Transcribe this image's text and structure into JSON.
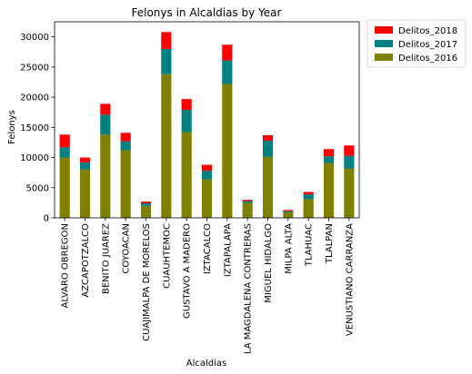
{
  "chart_data": {
    "type": "bar",
    "stacked": true,
    "title": "Felonys in Alcaldias by Year",
    "xlabel": "Alcaldias",
    "ylabel": "Felonys",
    "ylim": [
      0,
      32500
    ],
    "yticks": [
      0,
      5000,
      10000,
      15000,
      20000,
      25000,
      30000
    ],
    "grid": false,
    "legend": "outside-top-right",
    "categories": [
      "ALVARO OBREGON",
      "AZCAPOTZALCO",
      "BENITO JUAREZ",
      "COYOACAN",
      "CUAJIMALPA DE MORELOS",
      "CUAUHTEMOC",
      "GUSTAVO A MADERO",
      "IZTACALCO",
      "IZTAPALAPA",
      "LA MAGDALENA CONTRERAS",
      "MIGUEL HIDALGO",
      "MILPA ALTA",
      "TLAHUAC",
      "TLALPAN",
      "VENUSTIANO CARRANZA"
    ],
    "series": [
      {
        "name": "Delitos_2016",
        "color": "#808000",
        "values": [
          10000,
          8000,
          13800,
          11200,
          2000,
          23800,
          14200,
          6400,
          22200,
          2500,
          10100,
          900,
          3100,
          9100,
          8200
        ]
      },
      {
        "name": "Delitos_2017",
        "color": "#008080",
        "values": [
          1700,
          1200,
          3300,
          1500,
          400,
          4200,
          3700,
          1400,
          3900,
          300,
          2700,
          200,
          800,
          1100,
          2100
        ]
      },
      {
        "name": "Delitos_2018",
        "color": "#ff0000",
        "values": [
          2100,
          800,
          1800,
          1400,
          300,
          2800,
          1800,
          1000,
          2600,
          200,
          900,
          200,
          400,
          1200,
          1700
        ]
      }
    ],
    "legend_order": [
      "Delitos_2018",
      "Delitos_2017",
      "Delitos_2016"
    ]
  }
}
